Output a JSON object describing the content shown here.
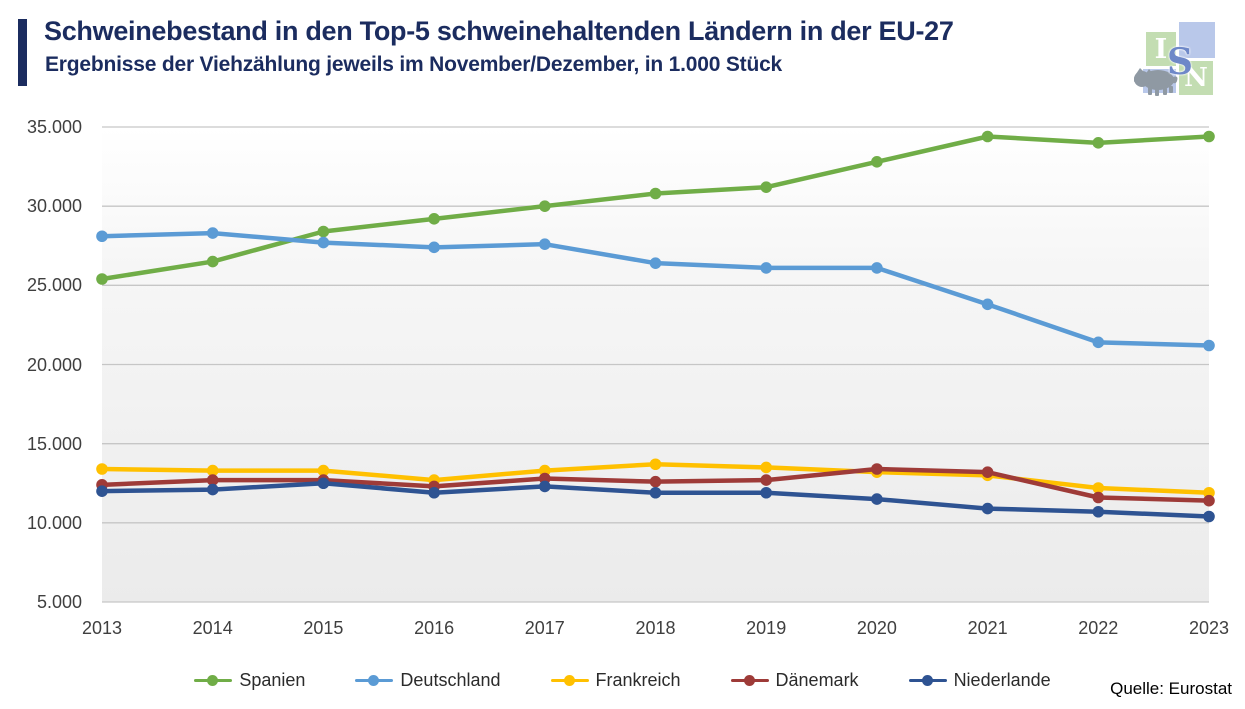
{
  "header": {
    "title": "Schweinebestand in den Top-5 schweinehaltenden Ländern in der EU-27",
    "subtitle": "Ergebnisse der Viehzählung jeweils im November/Dezember, in 1.000 Stück"
  },
  "logo": {
    "letter_i": "I",
    "letter_s": "S",
    "letter_n": "N",
    "pig_icon_color": "#8f99a3",
    "green_square_color": "#c3ddb2",
    "blue_square_color": "#b9c8ea"
  },
  "source": "Quelle: Eurostat",
  "colors": {
    "title_navy": "#1b2c5f",
    "axis_text": "#3f3f3f",
    "gridline": "#c6c6c6",
    "plot_bg_bottom": "#ebebeb"
  },
  "chart_data": {
    "type": "line",
    "x": [
      "2013",
      "2014",
      "2015",
      "2016",
      "2017",
      "2018",
      "2019",
      "2020",
      "2021",
      "2022",
      "2023"
    ],
    "series": [
      {
        "name": "Spanien",
        "color": "#70ad47",
        "values": [
          25400,
          26500,
          28400,
          29200,
          30000,
          30800,
          31200,
          32800,
          34400,
          34000,
          34400
        ]
      },
      {
        "name": "Deutschland",
        "color": "#5b9bd5",
        "values": [
          28100,
          28300,
          27700,
          27400,
          27600,
          26400,
          26100,
          26100,
          23800,
          21400,
          21200
        ]
      },
      {
        "name": "Frankreich",
        "color": "#ffc000",
        "values": [
          13400,
          13300,
          13300,
          12700,
          13300,
          13700,
          13500,
          13200,
          13000,
          12200,
          11900
        ]
      },
      {
        "name": "Dänemark",
        "color": "#9e3b38",
        "values": [
          12400,
          12700,
          12700,
          12300,
          12800,
          12600,
          12700,
          13400,
          13200,
          11600,
          11400
        ]
      },
      {
        "name": "Niederlande",
        "color": "#2e5392",
        "values": [
          12000,
          12100,
          12500,
          11900,
          12300,
          11900,
          11900,
          11500,
          10900,
          10700,
          10400
        ]
      }
    ],
    "ylim": [
      5000,
      35000
    ],
    "ytick_step": 5000,
    "ytick_labels": [
      "35.000",
      "30.000",
      "25.000",
      "20.000",
      "15.000",
      "10.000",
      "5.000"
    ],
    "grid": true,
    "legend_position": "bottom",
    "title": "Schweinebestand in den Top-5 schweinehaltenden Ländern in der EU-27",
    "ylabel": "in 1.000 Stück"
  }
}
